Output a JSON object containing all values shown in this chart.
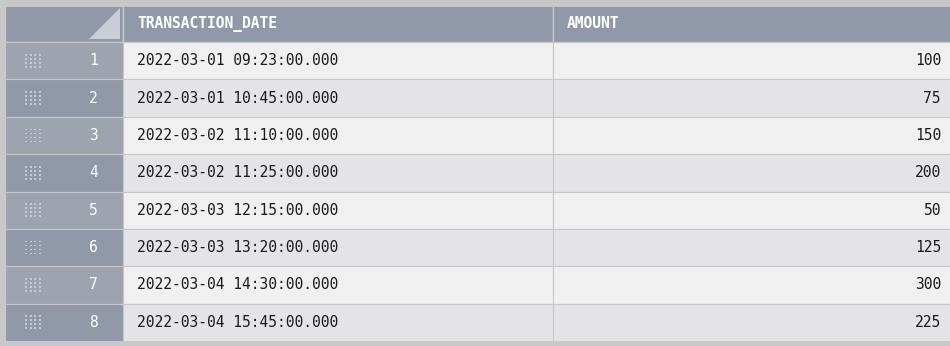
{
  "rows": [
    {
      "index": 1,
      "transaction_date": "2022-03-01 09:23:00.000",
      "amount": 100
    },
    {
      "index": 2,
      "transaction_date": "2022-03-01 10:45:00.000",
      "amount": 75
    },
    {
      "index": 3,
      "transaction_date": "2022-03-02 11:10:00.000",
      "amount": 150
    },
    {
      "index": 4,
      "transaction_date": "2022-03-02 11:25:00.000",
      "amount": 200
    },
    {
      "index": 5,
      "transaction_date": "2022-03-03 12:15:00.000",
      "amount": 50
    },
    {
      "index": 6,
      "transaction_date": "2022-03-03 13:20:00.000",
      "amount": 125
    },
    {
      "index": 7,
      "transaction_date": "2022-03-04 14:30:00.000",
      "amount": 300
    },
    {
      "index": 8,
      "transaction_date": "2022-03-04 15:45:00.000",
      "amount": 225
    }
  ],
  "col_headers": [
    "TRANSACTION_DATE",
    "AMOUNT"
  ],
  "header_bg": "#9199a8",
  "header_text_color": "#ffffff",
  "row_bg_light": "#f0f0f0",
  "row_bg_dark": "#e4e4e6",
  "index_col_bg_light": "#9da4b0",
  "index_col_bg_dark": "#9199a8",
  "cell_text_color": "#1a1a1a",
  "border_color": "#ffffff",
  "fig_bg": "#c8c8c8",
  "font_size": 10.5,
  "header_font_size": 10.5,
  "fig_width": 9.5,
  "fig_height": 3.46
}
